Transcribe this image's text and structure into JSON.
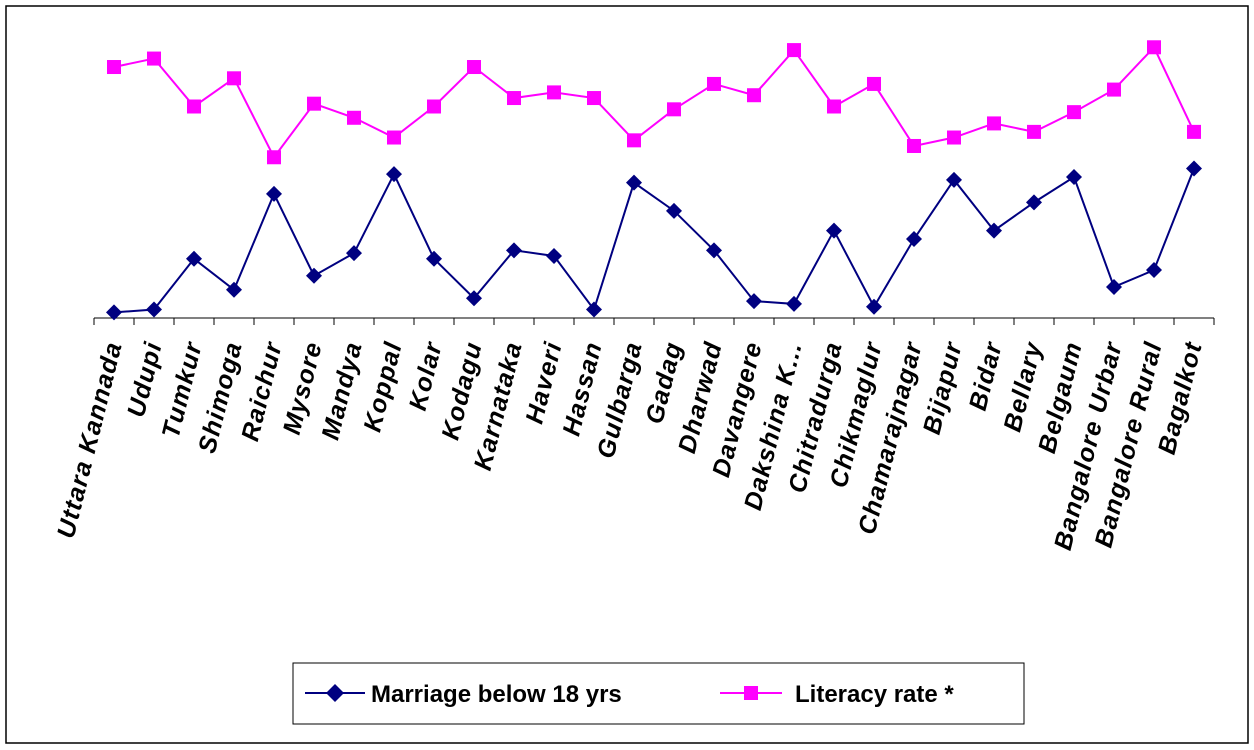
{
  "chart_data": {
    "type": "line",
    "title": "",
    "xlabel": "",
    "ylabel": "",
    "ylim": [
      0,
      100
    ],
    "grid": false,
    "legend_position": "bottom",
    "categories": [
      "Uttara Kannada",
      "Udupi",
      "Tumkur",
      "Shimoga",
      "Raichur",
      "Mysore",
      "Mandya",
      "Koppal",
      "Kolar",
      "Kodagu",
      "Karnataka",
      "Haveri",
      "Hassan",
      "Gulbarga",
      "Gadag",
      "Dharwad",
      "Davangere",
      "Dakshina K...",
      "Chitradurga",
      "Chikmaglur",
      "Chamarajnagar",
      "Bijapur",
      "Bidar",
      "Bellary",
      "Belgaum",
      "Bangalore Urbar",
      "Bangalore Rural",
      "Bagalkot"
    ],
    "series": [
      {
        "name": "Marriage below 18 yrs",
        "color": "#000080",
        "marker": "diamond",
        "values": [
          2,
          3,
          21,
          10,
          44,
          15,
          23,
          51,
          21,
          7,
          24,
          22,
          3,
          48,
          38,
          24,
          6,
          5,
          31,
          4,
          28,
          49,
          31,
          41,
          50,
          11,
          17,
          53
        ]
      },
      {
        "name": "Literacy rate *",
        "color": "#ff00ff",
        "marker": "square",
        "values": [
          89,
          92,
          75,
          85,
          57,
          76,
          71,
          64,
          75,
          89,
          78,
          80,
          78,
          63,
          74,
          83,
          79,
          95,
          75,
          83,
          61,
          64,
          69,
          66,
          73,
          81,
          96,
          66
        ]
      }
    ]
  }
}
